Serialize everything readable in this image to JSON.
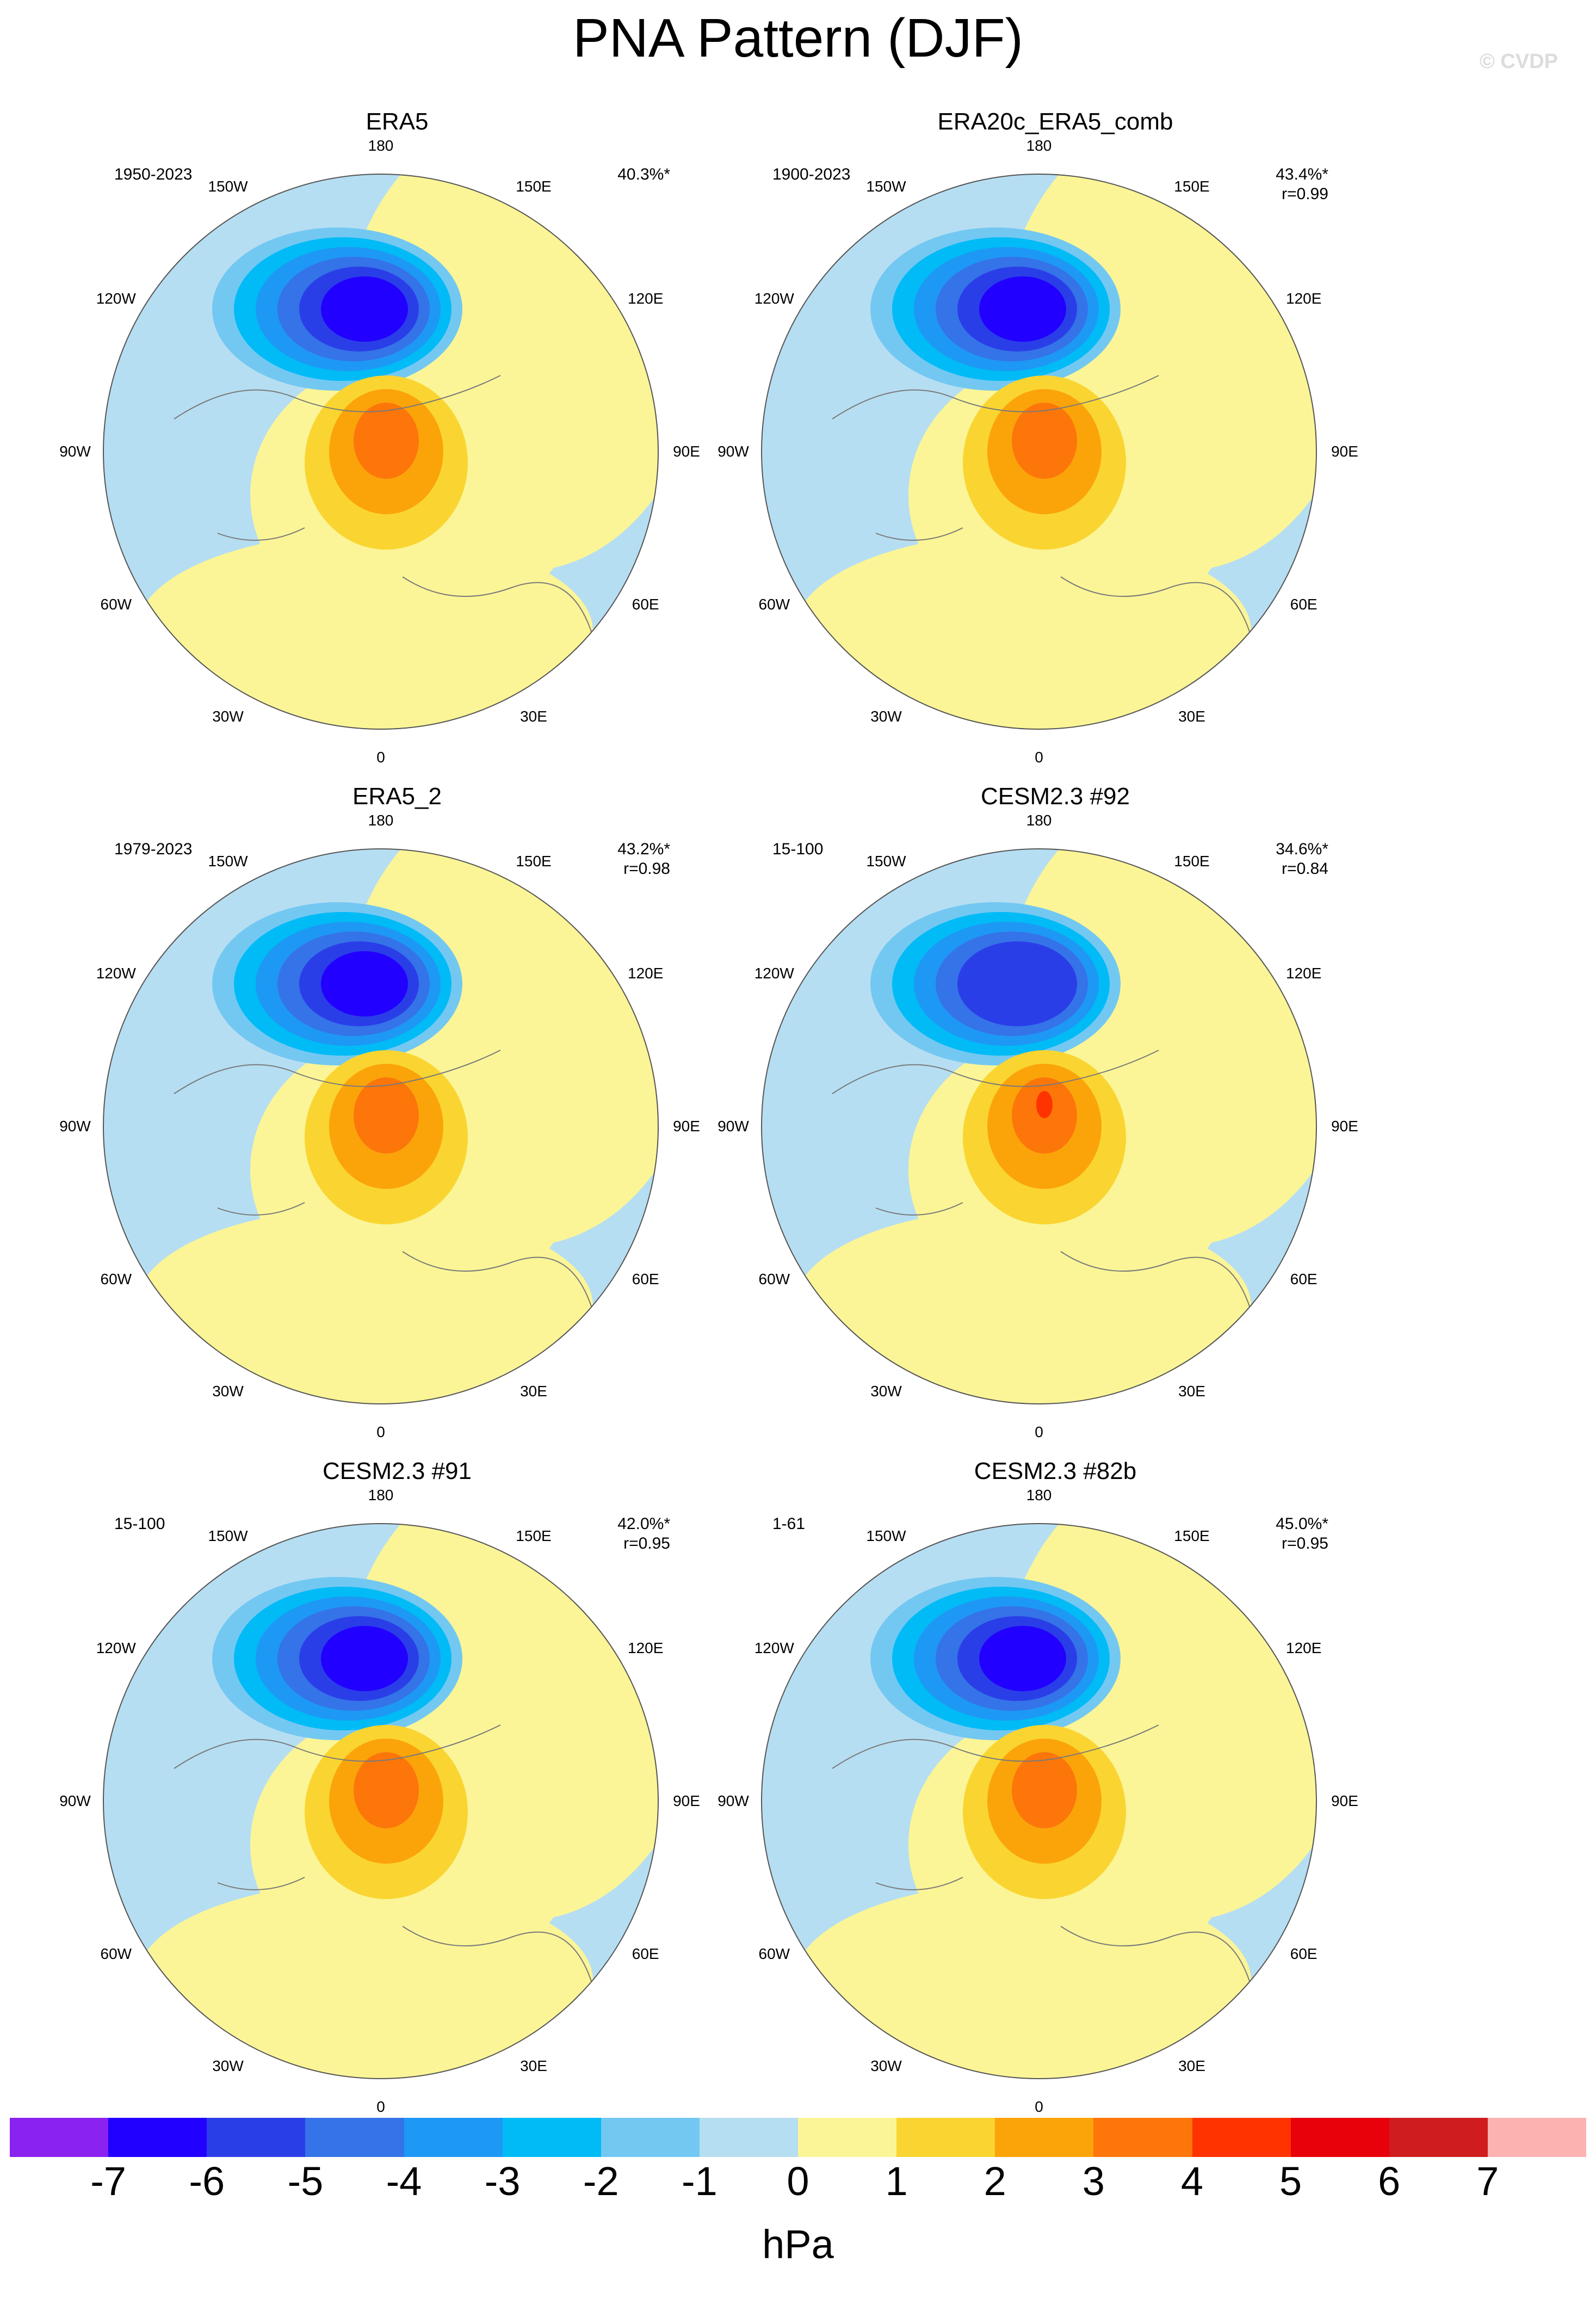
{
  "title": "PNA Pattern (DJF)",
  "watermark": "© CVDP",
  "unit": "hPa",
  "colorbar": {
    "ticks": [
      "-7",
      "-6",
      "-5",
      "-4",
      "-3",
      "-2",
      "-1",
      "0",
      "1",
      "2",
      "3",
      "4",
      "5",
      "6",
      "7"
    ],
    "colors": [
      "#8a22f0",
      "#2200ff",
      "#2a3ee8",
      "#3573e8",
      "#1e98f5",
      "#00bbf6",
      "#73c8f2",
      "#b6def2",
      "#fbf597",
      "#fad531",
      "#fba40a",
      "#fc760a",
      "#ff3300",
      "#e8000b",
      "#cf1c1f",
      "#fdb2b2"
    ]
  },
  "longitude_labels": [
    "180",
    "150E",
    "120E",
    "90E",
    "60E",
    "30E",
    "0",
    "30W",
    "60W",
    "90W",
    "120W",
    "150W"
  ],
  "panels": [
    {
      "title": "ERA5",
      "period": "1950-2023",
      "pct": "40.3%*",
      "r": "",
      "pattern": {
        "low": -6,
        "high": 3
      }
    },
    {
      "title": "ERA20c_ERA5_comb",
      "period": "1900-2023",
      "pct": "43.4%*",
      "r": "r=0.99",
      "pattern": {
        "low": -6,
        "high": 3
      }
    },
    {
      "title": "ERA5_2",
      "period": "1979-2023",
      "pct": "43.2%*",
      "r": "r=0.98",
      "pattern": {
        "low": -6,
        "high": 3
      }
    },
    {
      "title": "CESM2.3 #92",
      "period": "15-100",
      "pct": "34.6%*",
      "r": "r=0.84",
      "pattern": {
        "low": -5,
        "high": 4
      }
    },
    {
      "title": "CESM2.3 #91",
      "period": "15-100",
      "pct": "42.0%*",
      "r": "r=0.95",
      "pattern": {
        "low": -6,
        "high": 3
      }
    },
    {
      "title": "CESM2.3 #82b",
      "period": "1-61",
      "pct": "45.0%*",
      "r": "r=0.95",
      "pattern": {
        "low": -6,
        "high": 3
      }
    }
  ]
}
